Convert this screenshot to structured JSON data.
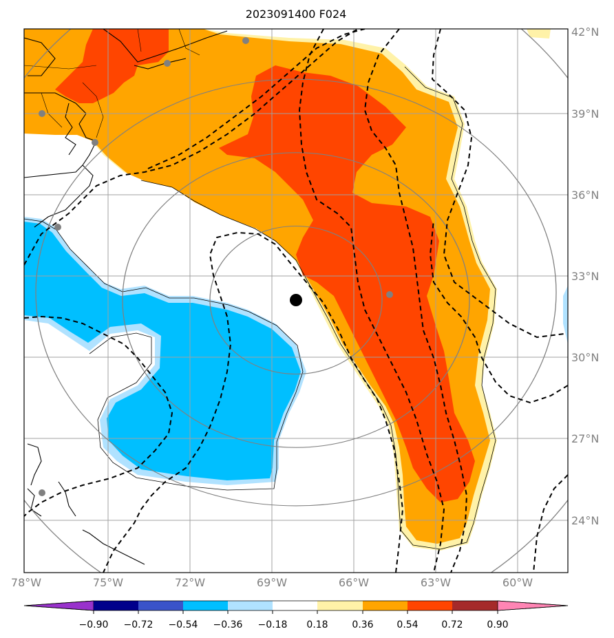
{
  "title": "2023091400 F024",
  "colors": {
    "positive_1": "#fff2a8",
    "positive_2": "#ffa500",
    "positive_3": "#ff4500",
    "negative_1": "#b0e2ff",
    "negative_2": "#00bfff",
    "grid": "#a0a0a0",
    "range_rings": "#808080",
    "contours": "#000000",
    "center_marker": "#000000"
  },
  "map": {
    "lon_ticks": [
      "78°W",
      "75°W",
      "72°W",
      "69°W",
      "66°W",
      "63°W",
      "60°W"
    ],
    "lat_ticks": [
      "42°N",
      "39°N",
      "36°N",
      "33°N",
      "30°N",
      "27°N",
      "24°N"
    ],
    "center_marker": {
      "lon": -68.0,
      "lat": 32.2
    },
    "contour_style": "dashed",
    "range_rings": 4
  },
  "colorbar": {
    "ticks": [
      "−0.90",
      "−0.72",
      "−0.54",
      "−0.36",
      "−0.18",
      "0.18",
      "0.36",
      "0.54",
      "0.72",
      "0.90"
    ],
    "segments": [
      "#9932cc",
      "#00008b",
      "#3a53c9",
      "#00bfff",
      "#b0e2ff",
      "#ffffff",
      "#fff2a8",
      "#ffa500",
      "#ff4500",
      "#a52a2a",
      "#ff85b4"
    ],
    "extend": "both"
  }
}
